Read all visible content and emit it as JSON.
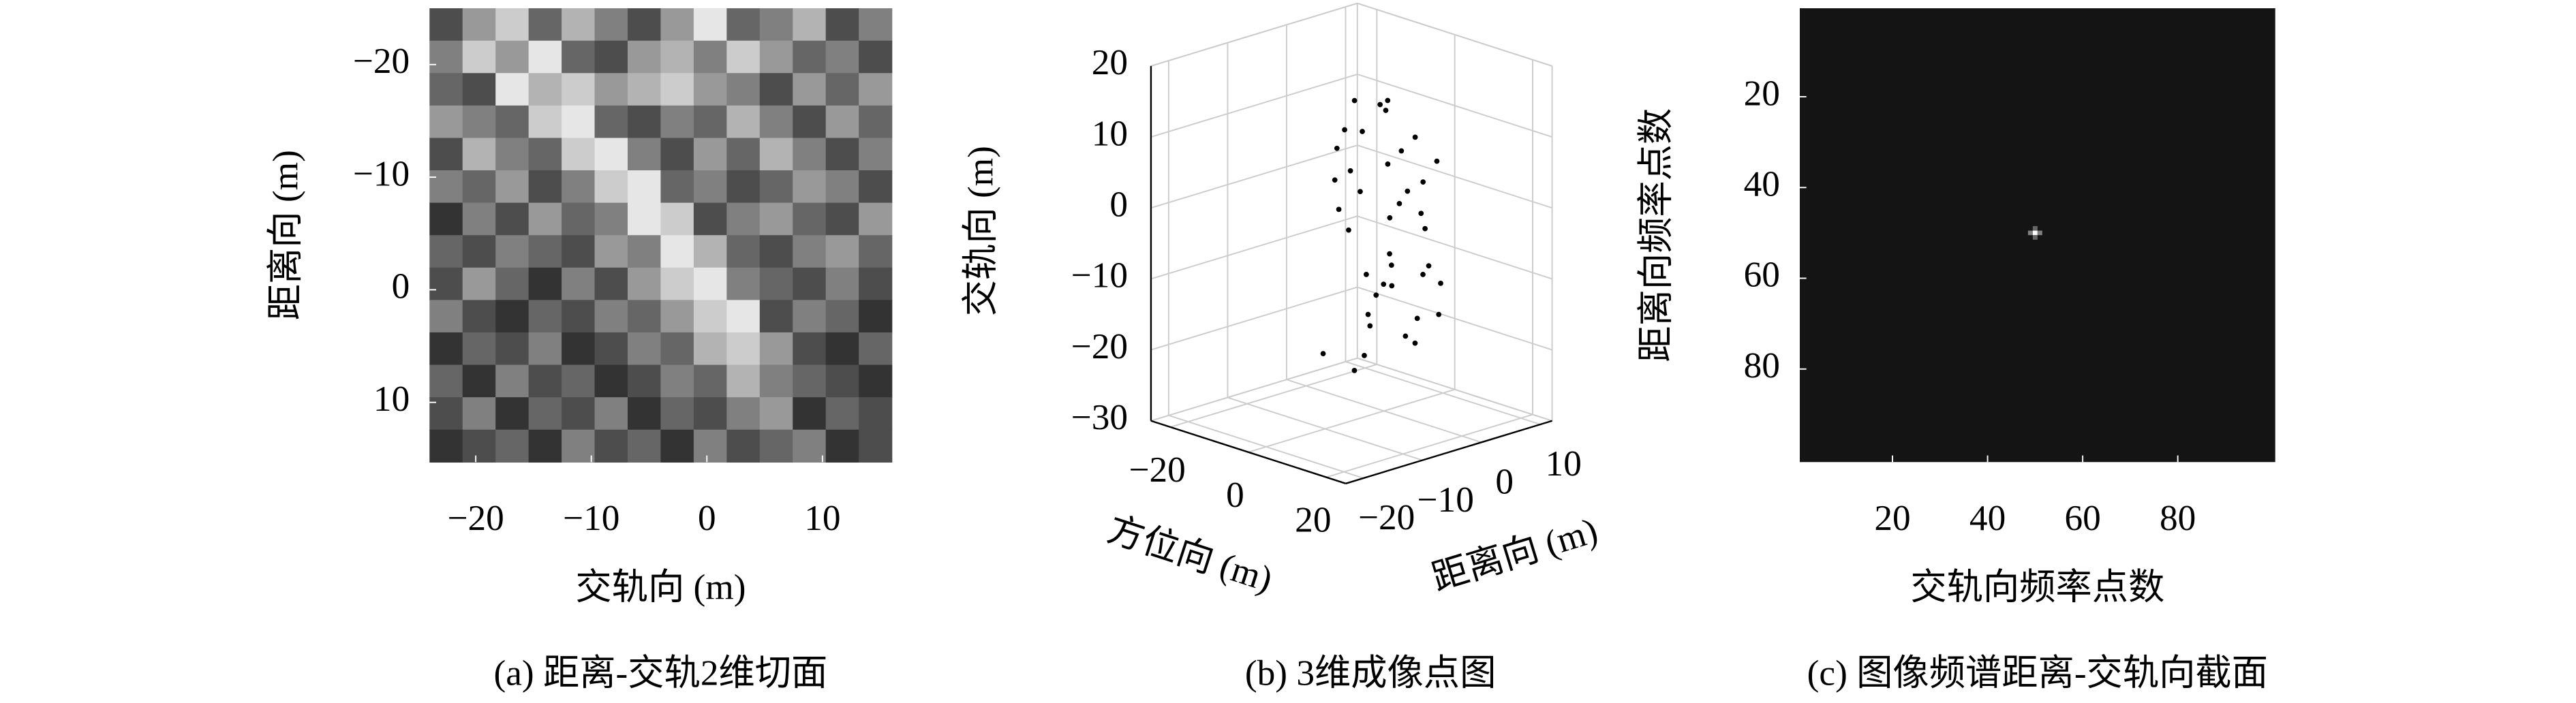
{
  "chart_data": [
    {
      "type": "heatmap",
      "caption": "(a) 距离-交轨2维切面",
      "xlabel": "交轨向 (m)",
      "ylabel": "距离向 (m)",
      "colormap": "gray",
      "xlim": [
        -24,
        16
      ],
      "ylim": [
        -25,
        15.3
      ],
      "yreverse": true,
      "xticks": [
        {
          "value": -20,
          "label": "−20"
        },
        {
          "value": -10,
          "label": "−10"
        },
        0,
        10
      ],
      "yticks": [
        {
          "value": -20,
          "label": "−20"
        },
        {
          "value": -10,
          "label": "−10"
        },
        0,
        10
      ],
      "values": [
        [
          0.3,
          0.6,
          0.8,
          0.4,
          0.7,
          0.5,
          0.3,
          0.6,
          0.9,
          0.4,
          0.5,
          0.7,
          0.3,
          0.5
        ],
        [
          0.5,
          0.8,
          0.6,
          0.9,
          0.4,
          0.3,
          0.6,
          0.7,
          0.5,
          0.8,
          0.6,
          0.4,
          0.5,
          0.3
        ],
        [
          0.4,
          0.3,
          0.9,
          0.7,
          0.8,
          0.6,
          0.7,
          0.8,
          0.6,
          0.5,
          0.3,
          0.6,
          0.4,
          0.6
        ],
        [
          0.6,
          0.5,
          0.4,
          0.8,
          0.9,
          0.4,
          0.3,
          0.5,
          0.4,
          0.7,
          0.5,
          0.3,
          0.6,
          0.4
        ],
        [
          0.3,
          0.7,
          0.5,
          0.4,
          0.8,
          0.9,
          0.5,
          0.3,
          0.6,
          0.4,
          0.7,
          0.5,
          0.3,
          0.5
        ],
        [
          0.5,
          0.4,
          0.6,
          0.3,
          0.5,
          0.8,
          0.9,
          0.4,
          0.5,
          0.3,
          0.4,
          0.6,
          0.5,
          0.3
        ],
        [
          0.2,
          0.5,
          0.3,
          0.6,
          0.4,
          0.5,
          0.9,
          0.8,
          0.3,
          0.5,
          0.6,
          0.4,
          0.3,
          0.6
        ],
        [
          0.4,
          0.3,
          0.5,
          0.4,
          0.3,
          0.6,
          0.5,
          0.9,
          0.7,
          0.4,
          0.3,
          0.5,
          0.6,
          0.4
        ],
        [
          0.3,
          0.6,
          0.4,
          0.2,
          0.5,
          0.3,
          0.6,
          0.8,
          0.9,
          0.5,
          0.4,
          0.3,
          0.5,
          0.3
        ],
        [
          0.5,
          0.3,
          0.2,
          0.4,
          0.3,
          0.5,
          0.4,
          0.6,
          0.8,
          0.9,
          0.3,
          0.5,
          0.4,
          0.2
        ],
        [
          0.2,
          0.4,
          0.3,
          0.5,
          0.2,
          0.3,
          0.5,
          0.4,
          0.7,
          0.8,
          0.6,
          0.3,
          0.2,
          0.4
        ],
        [
          0.4,
          0.2,
          0.5,
          0.3,
          0.4,
          0.2,
          0.3,
          0.5,
          0.4,
          0.7,
          0.5,
          0.4,
          0.3,
          0.2
        ],
        [
          0.3,
          0.5,
          0.2,
          0.4,
          0.3,
          0.5,
          0.2,
          0.4,
          0.3,
          0.5,
          0.6,
          0.2,
          0.4,
          0.3
        ],
        [
          0.2,
          0.3,
          0.4,
          0.2,
          0.5,
          0.3,
          0.4,
          0.2,
          0.5,
          0.3,
          0.4,
          0.5,
          0.2,
          0.3
        ]
      ]
    },
    {
      "type": "scatter3d",
      "caption": "(b) 3维成像点图",
      "xlabel": "方位向 (m)",
      "ylabel": "距离向 (m)",
      "zlabel": "交轨向 (m)",
      "color": "#000000",
      "xlim": [
        -25,
        25
      ],
      "ylim": [
        -23,
        12
      ],
      "zlim": [
        -30,
        20
      ],
      "xticks": [
        {
          "value": -20,
          "label": "−20"
        },
        0,
        20
      ],
      "yticks": [
        {
          "value": -20,
          "label": "−20"
        },
        {
          "value": -10,
          "label": "−10"
        },
        0,
        10
      ],
      "zticks": [
        {
          "value": -30,
          "label": "−30"
        },
        {
          "value": -20,
          "label": "−20"
        },
        {
          "value": -10,
          "label": "−10"
        },
        0,
        10,
        20
      ],
      "grid": true,
      "x": [
        0,
        2,
        5,
        8,
        -3,
        1,
        4,
        7,
        10,
        -1,
        3,
        6,
        9,
        12,
        0,
        2,
        5,
        8,
        11,
        -2,
        1,
        4,
        7,
        10,
        13,
        0,
        3,
        6,
        9,
        -1,
        2,
        5,
        8,
        11,
        1,
        4,
        7,
        10,
        3,
        6
      ],
      "y": [
        -5,
        -8,
        -3,
        0,
        -6,
        -9,
        -2,
        2,
        -4,
        -7,
        -1,
        3,
        -5,
        -8,
        -3,
        0,
        -6,
        4,
        -2,
        -9,
        -4,
        1,
        -7,
        3,
        -1,
        -6,
        2,
        -8,
        -3,
        0,
        -5,
        -9,
        1,
        -6,
        -2,
        3,
        -4,
        0,
        -7,
        5
      ],
      "z": [
        15,
        12,
        14,
        10,
        8,
        5,
        6,
        3,
        2,
        0,
        -2,
        -4,
        -5,
        -8,
        -10,
        -12,
        -14,
        -16,
        -18,
        -20,
        -21,
        -19,
        -15,
        -11,
        -7,
        -3,
        1,
        4,
        9,
        13,
        11,
        7,
        -1,
        -6,
        -13,
        -17,
        16,
        -9,
        -22,
        5
      ]
    },
    {
      "type": "heatmap",
      "caption": "(c) 图像频谱距离-交轨向截面",
      "xlabel": "交轨向频率点数",
      "ylabel": "距离向频率点数",
      "colormap": "gray",
      "xlim": [
        0.5,
        100.5
      ],
      "ylim": [
        0.5,
        100.5
      ],
      "yreverse": true,
      "xticks": [
        20,
        40,
        60,
        80
      ],
      "yticks": [
        20,
        40,
        60,
        80
      ],
      "background": 0.08,
      "x": [
        49,
        50,
        51,
        50,
        50
      ],
      "y": [
        50,
        50,
        50,
        49,
        51
      ],
      "values": [
        0.5,
        1,
        0.5,
        0.4,
        0.4
      ]
    }
  ]
}
